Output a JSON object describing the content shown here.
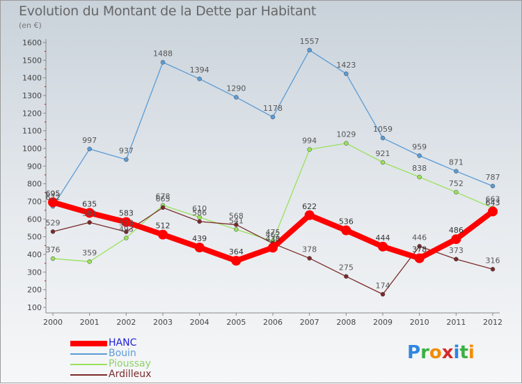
{
  "title": "Evolution du Montant de la Dette par Habitant",
  "subtitle": "(en €)",
  "logo": {
    "letters": [
      "P",
      "r",
      "o",
      "x",
      "i",
      "t",
      "i"
    ],
    "colors": [
      "#2e86de",
      "#3cb043",
      "#f28c00",
      "#d42a2a",
      "#2e86de",
      "#3cb043",
      "#f28c00"
    ]
  },
  "chart_data": {
    "type": "line",
    "title": "Evolution du Montant de la Dette par Habitant",
    "ylabel": "(en €)",
    "xlabel": "",
    "ylim": [
      100,
      1600
    ],
    "yticks": [
      100,
      200,
      300,
      400,
      500,
      600,
      700,
      800,
      900,
      1000,
      1100,
      1200,
      1300,
      1400,
      1500,
      1600
    ],
    "grid": false,
    "legend_position": "bottom-left",
    "categories": [
      "2000",
      "2001",
      "2002",
      "2003",
      "2004",
      "2005",
      "2006",
      "2007",
      "2008",
      "2009",
      "2010",
      "2011",
      "2012"
    ],
    "series": [
      {
        "name": "HANC",
        "color": "#ff0000",
        "label_color": "#1e1ed6",
        "values": [
          695,
          635,
          583,
          512,
          439,
          364,
          438,
          622,
          536,
          444,
          378,
          486,
          643
        ]
      },
      {
        "name": "Bouin",
        "color": "#5b9bd5",
        "label_color": "#5b9bd5",
        "values": [
          672,
          997,
          937,
          1488,
          1394,
          1290,
          1178,
          1557,
          1423,
          1059,
          959,
          871,
          787
        ]
      },
      {
        "name": "Pioussay",
        "color": "#99e15a",
        "label_color": "#8fd16a",
        "values": [
          376,
          359,
          493,
          678,
          610,
          541,
          475,
          994,
          1029,
          921,
          838,
          752,
          663
        ]
      },
      {
        "name": "Ardilleux",
        "color": "#7a2a2a",
        "label_color": "#7a2a2a",
        "values": [
          529,
          581,
          528,
          665,
          586,
          568,
          462,
          378,
          275,
          174,
          446,
          373,
          316
        ]
      }
    ]
  }
}
